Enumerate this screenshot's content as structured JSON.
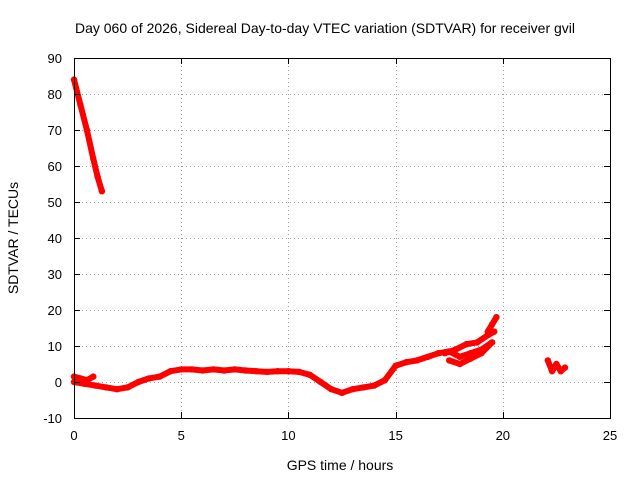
{
  "chart_data": {
    "type": "scatter",
    "title": "Day 060 of 2026, Sidereal Day-to-day VTEC variation (SDTVAR) for receiver gvil",
    "xlabel": "GPS time / hours",
    "ylabel": "SDTVAR / TECUs",
    "xlim": [
      0,
      25
    ],
    "ylim": [
      -10,
      90
    ],
    "xticks": [
      0,
      5,
      10,
      15,
      20,
      25
    ],
    "yticks": [
      -10,
      0,
      10,
      20,
      30,
      40,
      50,
      60,
      70,
      80,
      90
    ],
    "grid": true,
    "series_color": "#ff0000",
    "series": [
      {
        "name": "steep-decline",
        "x": [
          0.0,
          0.3,
          0.6,
          0.9,
          1.1,
          1.3
        ],
        "y": [
          84,
          77,
          70,
          62,
          57,
          53
        ]
      },
      {
        "name": "early-segment",
        "x": [
          0.0,
          0.3,
          0.6,
          0.9
        ],
        "y": [
          1.5,
          1,
          0.5,
          1.5
        ]
      },
      {
        "name": "main-trace",
        "x": [
          0.0,
          0.5,
          1.0,
          1.5,
          2.0,
          2.5,
          3.0,
          3.5,
          4.0,
          4.5,
          5.0,
          5.5,
          6.0,
          6.5,
          7.0,
          7.5,
          8.0,
          8.5,
          9.0,
          9.5,
          10.0,
          10.5,
          11.0,
          11.5,
          12.0,
          12.5,
          13.0,
          13.5,
          14.0,
          14.5,
          15.0,
          15.5,
          16.0,
          16.5,
          17.0,
          17.5,
          18.0,
          18.5,
          19.0,
          19.5
        ],
        "y": [
          0,
          -0.5,
          -1,
          -1.5,
          -2,
          -1.5,
          0,
          1,
          1.5,
          3,
          3.5,
          3.5,
          3.2,
          3.5,
          3.2,
          3.5,
          3.2,
          3,
          2.8,
          3,
          3,
          2.8,
          2,
          0,
          -2,
          -3,
          -2,
          -1.5,
          -1,
          0.5,
          4.5,
          5.5,
          6,
          7,
          8,
          8.5,
          7,
          8,
          9,
          11
        ]
      },
      {
        "name": "upper-branch",
        "x": [
          17.3,
          17.8,
          18.3,
          18.8,
          19.3,
          19.6
        ],
        "y": [
          8,
          9,
          10.5,
          11,
          13,
          14
        ]
      },
      {
        "name": "lower-branch",
        "x": [
          17.5,
          18.0,
          18.5,
          19.0,
          19.5
        ],
        "y": [
          6,
          5,
          6.5,
          8,
          11
        ]
      },
      {
        "name": "tail-spike",
        "x": [
          19.3,
          19.5,
          19.7
        ],
        "y": [
          14,
          16,
          18
        ]
      },
      {
        "name": "late-segment",
        "x": [
          22.1,
          22.3,
          22.5,
          22.7,
          22.9
        ],
        "y": [
          6,
          3,
          5,
          3,
          4
        ]
      }
    ]
  }
}
